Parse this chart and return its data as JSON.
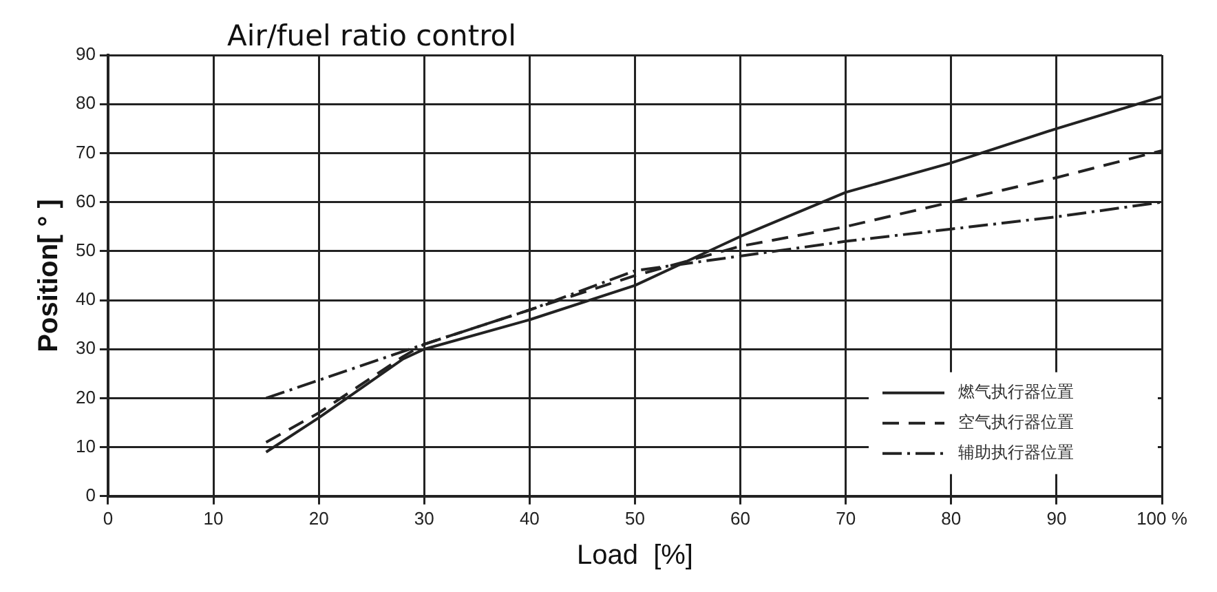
{
  "chart_data": {
    "type": "line",
    "title": "Air/fuel ratio control",
    "xlabel": "Load  [%]",
    "ylabel": "Position[ ° ]",
    "xlim": [
      0,
      100
    ],
    "xticks": [
      0,
      10,
      20,
      30,
      40,
      50,
      60,
      70,
      80,
      90,
      {
        "value": 100,
        "label": "100 %"
      }
    ],
    "ylim": [
      0,
      90
    ],
    "yticks": [
      0,
      10,
      20,
      30,
      40,
      50,
      60,
      70,
      80,
      90
    ],
    "grid": true,
    "legend": "bottom right",
    "marker": "none",
    "series": [
      {
        "name": "燃气执行器位置",
        "color": "#222222",
        "line_style": "solid",
        "x": [
          15,
          20,
          28,
          30,
          40,
          50,
          55,
          60,
          70,
          80,
          90,
          100
        ],
        "values": [
          9,
          16,
          28,
          30,
          36,
          43,
          48,
          53,
          62,
          68,
          75,
          81.5
        ]
      },
      {
        "name": "空气执行器位置",
        "color": "#222222",
        "line_style": "dashed",
        "x": [
          15,
          20,
          28,
          30,
          40,
          50,
          55,
          60,
          70,
          80,
          90,
          100
        ],
        "values": [
          11,
          17,
          28.5,
          31,
          38,
          45,
          48,
          51,
          55,
          60,
          65,
          70.5
        ]
      },
      {
        "name": "辅助执行器位置",
        "color": "#222222",
        "line_style": "dashdot",
        "x": [
          15,
          30,
          40,
          50,
          60,
          70,
          80,
          90,
          100
        ],
        "values": [
          20,
          31,
          38,
          46,
          49,
          52,
          54.5,
          57,
          60
        ]
      }
    ]
  }
}
